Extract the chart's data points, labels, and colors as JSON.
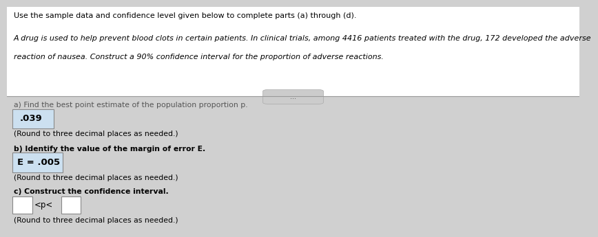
{
  "title_line": "Use the sample data and confidence level given below to complete parts (a) through (d).",
  "paragraph_line1": "A drug is used to help prevent blood clots in certain patients. In clinical trials, among 4416 patients treated with the drug, 172 developed the adverse",
  "paragraph_line2": "reaction of nausea. Construct a 90% confidence interval for the proportion of adverse reactions.",
  "part_a_label": "a) Find the best point estimate of the population proportion p.",
  "part_a_answer": ".039",
  "part_a_round": "(Round to three decimal places as needed.)",
  "part_b_label": "b) Identify the value of the margin of error E.",
  "part_b_answer": "E = .005",
  "part_b_round": "(Round to three decimal places as needed.)",
  "part_c_label": "c) Construct the confidence interval.",
  "part_c_mid": "<p<",
  "part_c_round": "(Round to three decimal places as needed.)",
  "bg_color": "#d0d0d0",
  "white_color": "#ffffff",
  "text_color": "#000000",
  "label_color": "#555555",
  "separator_color": "#999999",
  "answer_box_color": "#cce0f0",
  "divider_button_color": "#cccccc"
}
